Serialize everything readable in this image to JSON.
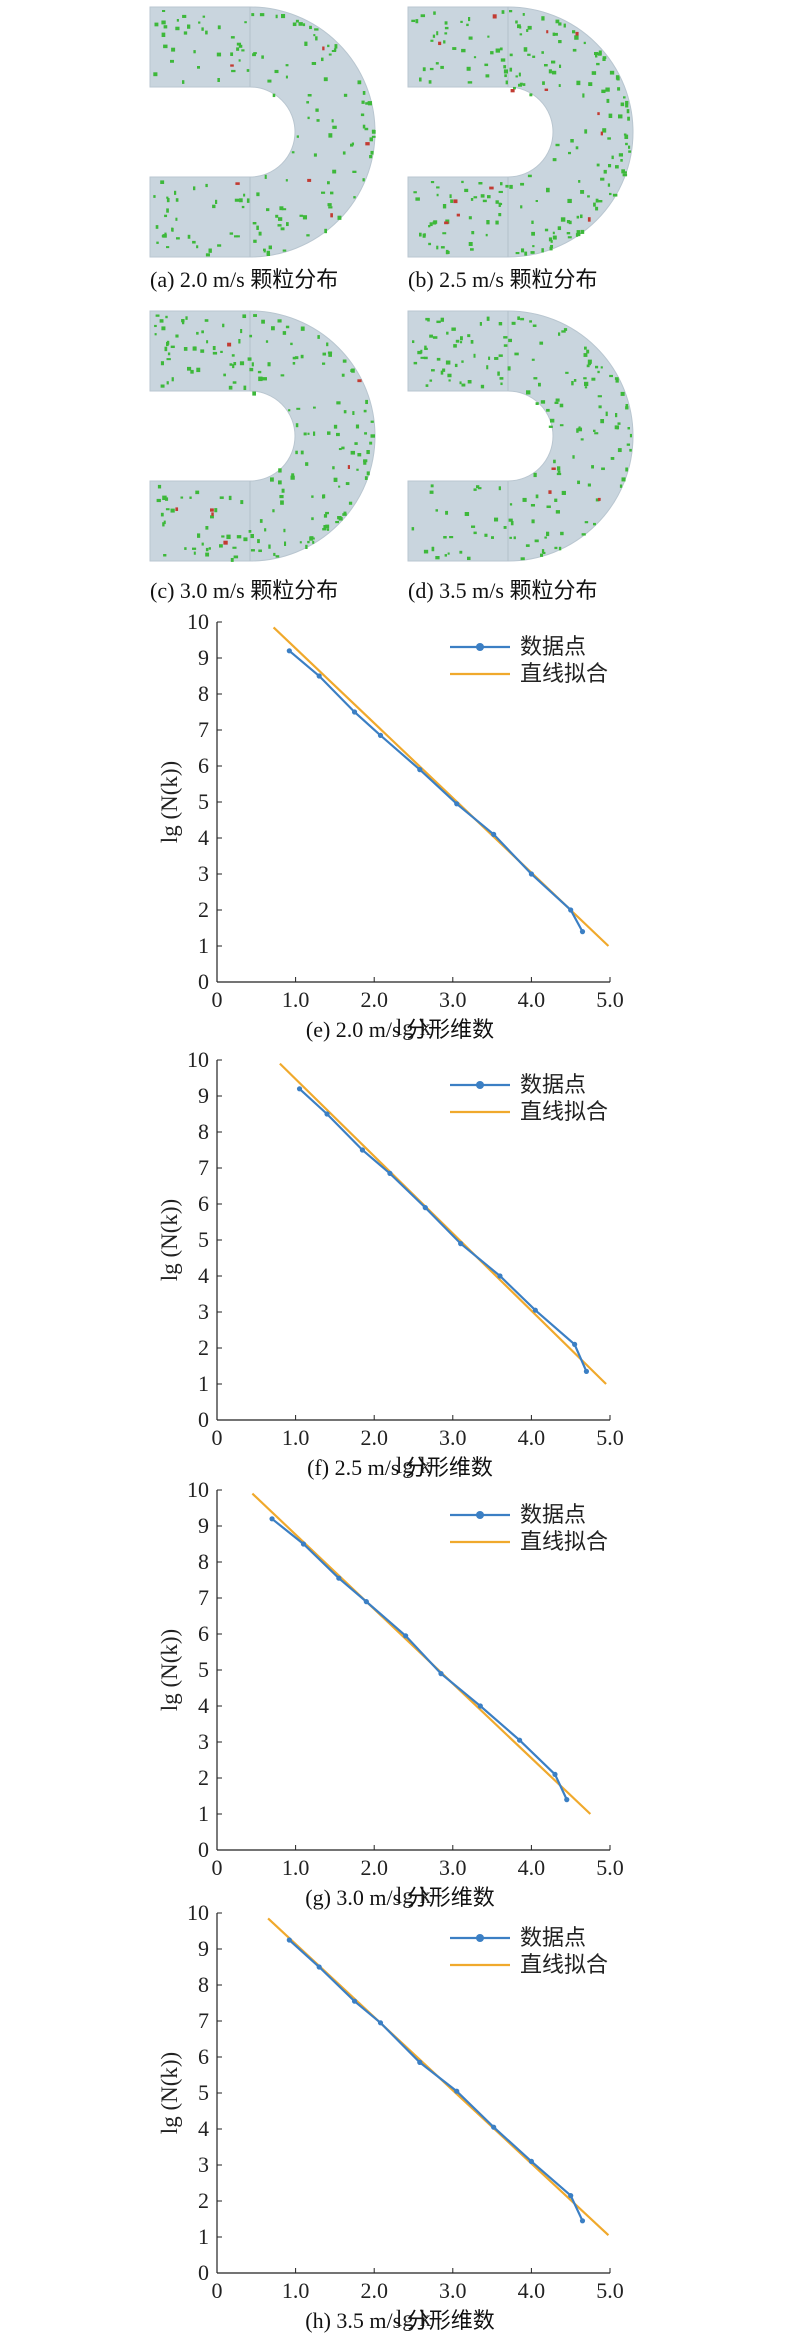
{
  "panel_captions": {
    "a": "(a) 2.0 m/s 颗粒分布",
    "b": "(b) 2.5 m/s 颗粒分布",
    "c": "(c) 3.0 m/s 颗粒分布",
    "d": "(d) 3.5 m/s 颗粒分布"
  },
  "colors": {
    "pipe": "#c9d5de",
    "particle_green": "#3db83a",
    "particle_red": "#c23b32",
    "data_line": "#3b7fc4",
    "fit_line": "#f0a92c"
  },
  "chart_data": [
    {
      "type": "line",
      "caption": "(e) 2.0 m/s 分形维数",
      "xlabel": "lg k",
      "ylabel": "lg (N(k))",
      "xlim": [
        0,
        5.0
      ],
      "ylim": [
        0,
        10
      ],
      "xticks": [
        "0",
        "1.0",
        "2.0",
        "3.0",
        "4.0",
        "5.0"
      ],
      "yticks": [
        "0",
        "1",
        "2",
        "3",
        "4",
        "5",
        "6",
        "7",
        "8",
        "9",
        "10"
      ],
      "legend": "top-right",
      "series": [
        {
          "name": "数据点",
          "x": [
            0.92,
            1.3,
            1.75,
            2.08,
            2.58,
            3.05,
            3.52,
            4.0,
            4.5,
            4.65
          ],
          "y": [
            9.2,
            8.5,
            7.5,
            6.85,
            5.9,
            4.95,
            4.1,
            3.0,
            2.0,
            1.4
          ]
        },
        {
          "name": "直线拟合",
          "x": [
            0.72,
            4.98
          ],
          "y": [
            9.85,
            1.0
          ]
        }
      ]
    },
    {
      "type": "line",
      "caption": "(f) 2.5 m/s 分形维数",
      "xlabel": "lg k",
      "ylabel": "lg (N(k))",
      "xlim": [
        0,
        5.0
      ],
      "ylim": [
        0,
        10
      ],
      "xticks": [
        "0",
        "1.0",
        "2.0",
        "3.0",
        "4.0",
        "5.0"
      ],
      "yticks": [
        "0",
        "1",
        "2",
        "3",
        "4",
        "5",
        "6",
        "7",
        "8",
        "9",
        "10"
      ],
      "legend": "top-right",
      "series": [
        {
          "name": "数据点",
          "x": [
            1.05,
            1.4,
            1.85,
            2.2,
            2.65,
            3.1,
            3.6,
            4.05,
            4.55,
            4.7
          ],
          "y": [
            9.2,
            8.5,
            7.5,
            6.85,
            5.9,
            4.9,
            4.0,
            3.05,
            2.1,
            1.35
          ]
        },
        {
          "name": "直线拟合",
          "x": [
            0.8,
            4.95
          ],
          "y": [
            9.9,
            1.0
          ]
        }
      ]
    },
    {
      "type": "line",
      "caption": "(g) 3.0 m/s 分形维数",
      "xlabel": "lg k",
      "ylabel": "lg (N(k))",
      "xlim": [
        0,
        5.0
      ],
      "ylim": [
        0,
        10
      ],
      "xticks": [
        "0",
        "1.0",
        "2.0",
        "3.0",
        "4.0",
        "5.0"
      ],
      "yticks": [
        "0",
        "1",
        "2",
        "3",
        "4",
        "5",
        "6",
        "7",
        "8",
        "9",
        "10"
      ],
      "legend": "top-right",
      "series": [
        {
          "name": "数据点",
          "x": [
            0.7,
            1.1,
            1.55,
            1.9,
            2.4,
            2.85,
            3.35,
            3.85,
            4.3,
            4.45
          ],
          "y": [
            9.2,
            8.5,
            7.55,
            6.9,
            5.95,
            4.9,
            4.0,
            3.05,
            2.1,
            1.4
          ]
        },
        {
          "name": "直线拟合",
          "x": [
            0.45,
            4.75
          ],
          "y": [
            9.9,
            1.0
          ]
        }
      ]
    },
    {
      "type": "line",
      "caption": "(h) 3.5 m/s 分形维数",
      "xlabel": "lg k",
      "ylabel": "lg (N(k))",
      "xlim": [
        0,
        5.0
      ],
      "ylim": [
        0,
        10
      ],
      "xticks": [
        "0",
        "1.0",
        "2.0",
        "3.0",
        "4.0",
        "5.0"
      ],
      "yticks": [
        "0",
        "1",
        "2",
        "3",
        "4",
        "5",
        "6",
        "7",
        "8",
        "9",
        "10"
      ],
      "legend": "top-right",
      "series": [
        {
          "name": "数据点",
          "x": [
            0.92,
            1.3,
            1.75,
            2.08,
            2.58,
            3.05,
            3.52,
            4.0,
            4.5,
            4.65
          ],
          "y": [
            9.25,
            8.5,
            7.55,
            6.95,
            5.85,
            5.05,
            4.05,
            3.1,
            2.15,
            1.45
          ]
        },
        {
          "name": "直线拟合",
          "x": [
            0.65,
            4.98
          ],
          "y": [
            9.85,
            1.05
          ]
        }
      ]
    }
  ]
}
